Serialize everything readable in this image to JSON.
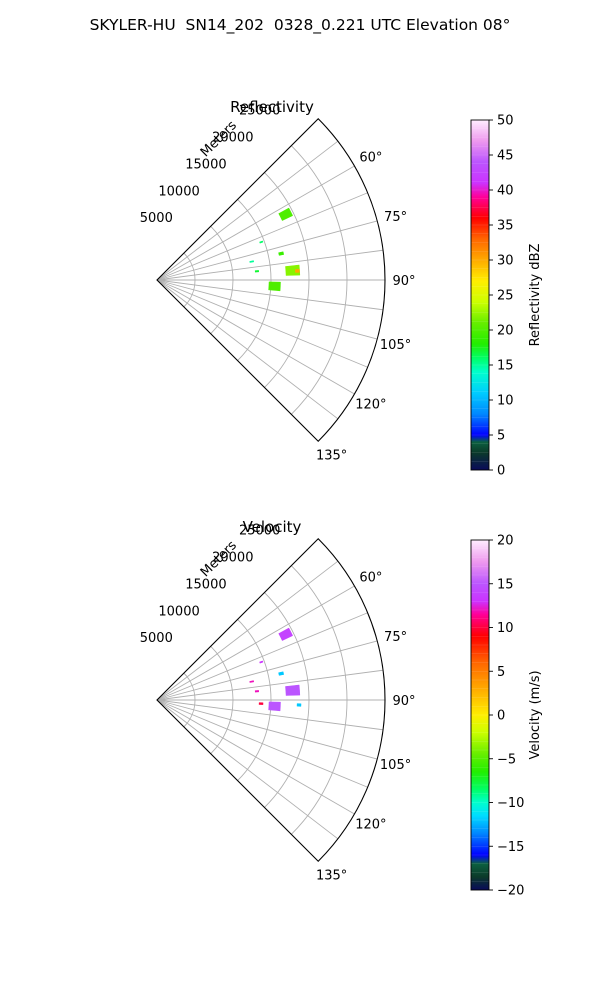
{
  "figure": {
    "title": "SKYLER-HU  SN14_202  0328_0.221 UTC Elevation 08°"
  },
  "colors": {
    "grid": "#b0b0b0",
    "frame": "#000000",
    "text": "#000000",
    "velocity_outbound_dark": "#111111"
  },
  "chart_data": [
    {
      "type": "heatmap",
      "subtype": "polar-sector-radar-ppi",
      "title": "Reflectivity",
      "radial_label": "Meters",
      "r_ticks": [
        "5000",
        "10000",
        "15000",
        "20000",
        "25000"
      ],
      "r_tick_values": [
        5000,
        10000,
        15000,
        20000,
        25000
      ],
      "r_max": 30000,
      "theta_range_deg": [
        45,
        135
      ],
      "theta_ticks": [
        "60°",
        "75°",
        "90°",
        "105°",
        "120°",
        "135°"
      ],
      "theta_tick_values": [
        60,
        75,
        90,
        105,
        120,
        135
      ],
      "grid": true,
      "colorbar": {
        "label": "Reflectivity dBZ",
        "min": 0,
        "max": 50,
        "ticks": [
          "0",
          "5",
          "10",
          "15",
          "20",
          "25",
          "30",
          "35",
          "40",
          "45",
          "50"
        ],
        "tick_values": [
          0,
          5,
          10,
          15,
          20,
          25,
          30,
          35,
          40,
          45,
          50
        ],
        "stops": [
          {
            "v": 0,
            "c": "#0a0a5a"
          },
          {
            "v": 2.5,
            "c": "#0b3a2a"
          },
          {
            "v": 4,
            "c": "#0b6040"
          },
          {
            "v": 5,
            "c": "#0000ff"
          },
          {
            "v": 8,
            "c": "#0088ff"
          },
          {
            "v": 11,
            "c": "#00ccff"
          },
          {
            "v": 14,
            "c": "#00ffcc"
          },
          {
            "v": 16,
            "c": "#00ff66"
          },
          {
            "v": 18,
            "c": "#22ee00"
          },
          {
            "v": 21,
            "c": "#66ee00"
          },
          {
            "v": 24,
            "c": "#ccff00"
          },
          {
            "v": 27,
            "c": "#ffee00"
          },
          {
            "v": 30,
            "c": "#ffaa00"
          },
          {
            "v": 33,
            "c": "#ff6600"
          },
          {
            "v": 36,
            "c": "#ff0000"
          },
          {
            "v": 39,
            "c": "#ff0099"
          },
          {
            "v": 41,
            "c": "#cc33ff"
          },
          {
            "v": 44,
            "c": "#bb55ff"
          },
          {
            "v": 47,
            "c": "#ee99ee"
          },
          {
            "v": 50,
            "c": "#ffeeff"
          }
        ]
      },
      "echoes": [
        {
          "theta": 63,
          "r": 19000,
          "dtheta": 3.2,
          "dr": 1500,
          "value": 20
        },
        {
          "theta": 70,
          "r": 14600,
          "dtheta": 0.6,
          "dr": 400,
          "value": 16
        },
        {
          "theta": 79,
          "r": 12700,
          "dtheta": 0.7,
          "dr": 500,
          "value": 15
        },
        {
          "theta": 85,
          "r": 13200,
          "dtheta": 0.8,
          "dr": 450,
          "value": 17
        },
        {
          "theta": 78,
          "r": 16700,
          "dtheta": 1.2,
          "dr": 600,
          "value": 19
        },
        {
          "theta": 86,
          "r": 17900,
          "dtheta": 4.0,
          "dr": 1800,
          "value": 22
        },
        {
          "theta": 86.3,
          "r": 18500,
          "dtheta": 1.2,
          "dr": 500,
          "value": 30
        },
        {
          "theta": 93,
          "r": 15500,
          "dtheta": 4.0,
          "dr": 1500,
          "value": 20
        }
      ]
    },
    {
      "type": "heatmap",
      "subtype": "polar-sector-radar-ppi",
      "title": "Velocity",
      "radial_label": "Meters",
      "r_ticks": [
        "5000",
        "10000",
        "15000",
        "20000",
        "25000"
      ],
      "r_tick_values": [
        5000,
        10000,
        15000,
        20000,
        25000
      ],
      "r_max": 30000,
      "theta_range_deg": [
        45,
        135
      ],
      "theta_ticks": [
        "60°",
        "75°",
        "90°",
        "105°",
        "120°",
        "135°"
      ],
      "theta_tick_values": [
        60,
        75,
        90,
        105,
        120,
        135
      ],
      "grid": true,
      "colorbar": {
        "label": "Velocity (m/s)",
        "min": -20,
        "max": 20,
        "ticks": [
          "−20",
          "−15",
          "−10",
          "−5",
          "0",
          "5",
          "10",
          "15",
          "20"
        ],
        "tick_values": [
          -20,
          -15,
          -10,
          -5,
          0,
          5,
          10,
          15,
          20
        ],
        "stops": [
          {
            "v": -20,
            "c": "#0a0a5a"
          },
          {
            "v": -18.5,
            "c": "#0b3a2a"
          },
          {
            "v": -17,
            "c": "#0b6040"
          },
          {
            "v": -16,
            "c": "#0000ff"
          },
          {
            "v": -13.5,
            "c": "#0088ff"
          },
          {
            "v": -11.5,
            "c": "#00ddff"
          },
          {
            "v": -10,
            "c": "#00ffcc"
          },
          {
            "v": -8.5,
            "c": "#00ff66"
          },
          {
            "v": -6.5,
            "c": "#22ee00"
          },
          {
            "v": -4.5,
            "c": "#66ee00"
          },
          {
            "v": -2,
            "c": "#ccff00"
          },
          {
            "v": 0,
            "c": "#ffee00"
          },
          {
            "v": 3,
            "c": "#ffaa00"
          },
          {
            "v": 6,
            "c": "#ff6600"
          },
          {
            "v": 9,
            "c": "#ff0000"
          },
          {
            "v": 11.5,
            "c": "#ff0099"
          },
          {
            "v": 13,
            "c": "#cc33ff"
          },
          {
            "v": 15,
            "c": "#bb55ff"
          },
          {
            "v": 17.5,
            "c": "#ee99ee"
          },
          {
            "v": 20,
            "c": "#ffeeff"
          }
        ]
      },
      "echoes": [
        {
          "theta": 63,
          "r": 19000,
          "dtheta": 3.2,
          "dr": 1500,
          "value": 14
        },
        {
          "theta": 70,
          "r": 14600,
          "dtheta": 0.6,
          "dr": 400,
          "value": 13
        },
        {
          "theta": 79,
          "r": 12700,
          "dtheta": 0.7,
          "dr": 500,
          "value": 12
        },
        {
          "theta": 85,
          "r": 13200,
          "dtheta": 0.8,
          "dr": 450,
          "value": 12
        },
        {
          "theta": 78,
          "r": 16700,
          "dtheta": 1.2,
          "dr": 600,
          "value": -12
        },
        {
          "theta": 86,
          "r": 17900,
          "dtheta": 4.0,
          "dr": 1800,
          "value": 15
        },
        {
          "theta": 92,
          "r": 18700,
          "dtheta": 1.0,
          "dr": 500,
          "value": -12
        },
        {
          "theta": 93,
          "r": 15500,
          "dtheta": 4.0,
          "dr": 1500,
          "value": 15
        },
        {
          "theta": 92,
          "r": 13700,
          "dtheta": 1.0,
          "dr": 500,
          "value": 10
        }
      ]
    }
  ]
}
